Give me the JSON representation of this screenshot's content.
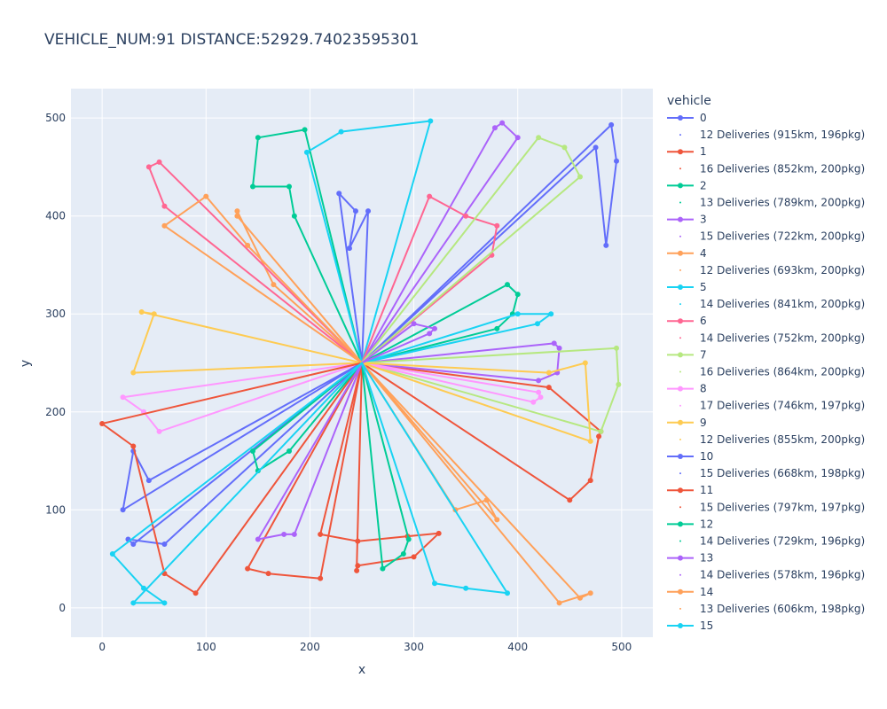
{
  "chart_data": {
    "type": "scatter",
    "mode": "lines+markers",
    "title": "VEHICLE_NUM:91 DISTANCE:52929.74023595301",
    "xlabel": "x",
    "ylabel": "y",
    "xlim": [
      -30,
      530
    ],
    "ylim": [
      -30,
      530
    ],
    "x_ticks": [
      0,
      100,
      200,
      300,
      400,
      500
    ],
    "y_ticks": [
      0,
      100,
      200,
      300,
      400,
      500
    ],
    "x_tick_labels": [
      "0",
      "100",
      "200",
      "300",
      "400",
      "500"
    ],
    "y_tick_labels": [
      "0",
      "100",
      "200",
      "300",
      "400",
      "500"
    ],
    "grid": true,
    "plot_background": "#e5ecf6",
    "depot": [
      250,
      250
    ],
    "legend": {
      "title": "vehicle",
      "placement": "right",
      "entries": [
        {
          "label": "0",
          "color": "#636efa",
          "kind": "line"
        },
        {
          "label": "12 Deliveries (915km, 196pkg)",
          "color": "#636efa",
          "kind": "dot"
        },
        {
          "label": "1",
          "color": "#ef553b",
          "kind": "line"
        },
        {
          "label": "16 Deliveries (852km, 200pkg)",
          "color": "#ef553b",
          "kind": "dot"
        },
        {
          "label": "2",
          "color": "#00cc96",
          "kind": "line"
        },
        {
          "label": "13 Deliveries (789km, 200pkg)",
          "color": "#00cc96",
          "kind": "dot"
        },
        {
          "label": "3",
          "color": "#ab63fa",
          "kind": "line"
        },
        {
          "label": "15 Deliveries (722km, 200pkg)",
          "color": "#ab63fa",
          "kind": "dot"
        },
        {
          "label": "4",
          "color": "#ffa15a",
          "kind": "line"
        },
        {
          "label": "12 Deliveries (693km, 200pkg)",
          "color": "#ffa15a",
          "kind": "dot"
        },
        {
          "label": "5",
          "color": "#19d3f3",
          "kind": "line"
        },
        {
          "label": "14 Deliveries (841km, 200pkg)",
          "color": "#19d3f3",
          "kind": "dot"
        },
        {
          "label": "6",
          "color": "#ff6692",
          "kind": "line"
        },
        {
          "label": "14 Deliveries (752km, 200pkg)",
          "color": "#ff6692",
          "kind": "dot"
        },
        {
          "label": "7",
          "color": "#b6e880",
          "kind": "line"
        },
        {
          "label": "16 Deliveries (864km, 200pkg)",
          "color": "#b6e880",
          "kind": "dot"
        },
        {
          "label": "8",
          "color": "#ff97ff",
          "kind": "line"
        },
        {
          "label": "17 Deliveries (746km, 197pkg)",
          "color": "#ff97ff",
          "kind": "dot"
        },
        {
          "label": "9",
          "color": "#fecb52",
          "kind": "line"
        },
        {
          "label": "12 Deliveries (855km, 200pkg)",
          "color": "#fecb52",
          "kind": "dot"
        },
        {
          "label": "10",
          "color": "#636efa",
          "kind": "line"
        },
        {
          "label": "15 Deliveries (668km, 198pkg)",
          "color": "#636efa",
          "kind": "dot"
        },
        {
          "label": "11",
          "color": "#ef553b",
          "kind": "line"
        },
        {
          "label": "15 Deliveries (797km, 197pkg)",
          "color": "#ef553b",
          "kind": "dot"
        },
        {
          "label": "12",
          "color": "#00cc96",
          "kind": "line"
        },
        {
          "label": "14 Deliveries (729km, 196pkg)",
          "color": "#00cc96",
          "kind": "dot"
        },
        {
          "label": "13",
          "color": "#ab63fa",
          "kind": "line"
        },
        {
          "label": "14 Deliveries (578km, 196pkg)",
          "color": "#ab63fa",
          "kind": "dot"
        },
        {
          "label": "14",
          "color": "#ffa15a",
          "kind": "line"
        },
        {
          "label": "13 Deliveries (606km, 198pkg)",
          "color": "#ffa15a",
          "kind": "dot"
        },
        {
          "label": "15",
          "color": "#19d3f3",
          "kind": "line"
        },
        {
          "label": "14 Deliveries (690km, 197pkg)",
          "color": "#19d3f3",
          "kind": "dot"
        }
      ]
    },
    "series": [
      {
        "name": "0",
        "color": "#636efa",
        "points": [
          [
            250,
            250
          ],
          [
            228,
            423
          ],
          [
            244,
            405
          ],
          [
            238,
            367
          ],
          [
            256,
            405
          ],
          [
            250,
            250
          ],
          [
            490,
            493
          ],
          [
            495,
            456
          ],
          [
            485,
            370
          ],
          [
            475,
            470
          ],
          [
            250,
            250
          ]
        ]
      },
      {
        "name": "1",
        "color": "#ef553b",
        "points": [
          [
            250,
            250
          ],
          [
            210,
            75
          ],
          [
            246,
            68
          ],
          [
            294,
            73
          ],
          [
            324,
            76
          ],
          [
            300,
            52
          ],
          [
            246,
            43
          ],
          [
            245,
            38
          ],
          [
            250,
            250
          ],
          [
            430,
            225
          ],
          [
            480,
            180
          ],
          [
            478,
            175
          ],
          [
            470,
            130
          ],
          [
            450,
            110
          ],
          [
            250,
            250
          ]
        ]
      },
      {
        "name": "2",
        "color": "#00cc96",
        "points": [
          [
            250,
            250
          ],
          [
            185,
            400
          ],
          [
            180,
            430
          ],
          [
            145,
            430
          ],
          [
            150,
            480
          ],
          [
            195,
            488
          ],
          [
            250,
            250
          ],
          [
            390,
            330
          ],
          [
            400,
            320
          ],
          [
            395,
            300
          ],
          [
            380,
            285
          ],
          [
            250,
            250
          ]
        ]
      },
      {
        "name": "3",
        "color": "#ab63fa",
        "points": [
          [
            250,
            250
          ],
          [
            400,
            480
          ],
          [
            385,
            495
          ],
          [
            378,
            490
          ],
          [
            250,
            250
          ],
          [
            435,
            270
          ],
          [
            440,
            265
          ],
          [
            438,
            240
          ],
          [
            420,
            232
          ],
          [
            250,
            250
          ]
        ]
      },
      {
        "name": "4",
        "color": "#ffa15a",
        "points": [
          [
            250,
            250
          ],
          [
            165,
            330
          ],
          [
            130,
            405
          ],
          [
            130,
            400
          ],
          [
            250,
            250
          ],
          [
            460,
            10
          ],
          [
            470,
            15
          ],
          [
            440,
            5
          ],
          [
            250,
            250
          ]
        ]
      },
      {
        "name": "5",
        "color": "#19d3f3",
        "points": [
          [
            250,
            250
          ],
          [
            197,
            465
          ],
          [
            230,
            486
          ],
          [
            316,
            497
          ],
          [
            250,
            250
          ],
          [
            400,
            300
          ],
          [
            432,
            300
          ],
          [
            419,
            290
          ],
          [
            250,
            250
          ]
        ]
      },
      {
        "name": "6",
        "color": "#ff6692",
        "points": [
          [
            250,
            250
          ],
          [
            315,
            420
          ],
          [
            350,
            400
          ],
          [
            380,
            390
          ],
          [
            375,
            360
          ],
          [
            250,
            250
          ],
          [
            55,
            455
          ],
          [
            45,
            450
          ],
          [
            60,
            410
          ],
          [
            250,
            250
          ]
        ]
      },
      {
        "name": "7",
        "color": "#b6e880",
        "points": [
          [
            250,
            250
          ],
          [
            420,
            480
          ],
          [
            445,
            470
          ],
          [
            460,
            440
          ],
          [
            250,
            250
          ],
          [
            495,
            265
          ],
          [
            497,
            228
          ],
          [
            480,
            180
          ],
          [
            250,
            250
          ]
        ]
      },
      {
        "name": "8",
        "color": "#ff97ff",
        "points": [
          [
            250,
            250
          ],
          [
            20,
            215
          ],
          [
            40,
            200
          ],
          [
            55,
            180
          ],
          [
            250,
            250
          ],
          [
            420,
            220
          ],
          [
            422,
            215
          ],
          [
            415,
            210
          ],
          [
            250,
            250
          ]
        ]
      },
      {
        "name": "9",
        "color": "#fecb52",
        "points": [
          [
            250,
            250
          ],
          [
            38,
            302
          ],
          [
            50,
            300
          ],
          [
            30,
            240
          ],
          [
            250,
            250
          ],
          [
            430,
            240
          ],
          [
            465,
            250
          ],
          [
            470,
            170
          ],
          [
            250,
            250
          ]
        ]
      },
      {
        "name": "10",
        "color": "#636efa",
        "points": [
          [
            250,
            250
          ],
          [
            20,
            100
          ],
          [
            30,
            160
          ],
          [
            45,
            130
          ],
          [
            250,
            250
          ],
          [
            60,
            65
          ],
          [
            25,
            70
          ],
          [
            30,
            65
          ],
          [
            250,
            250
          ]
        ]
      },
      {
        "name": "11",
        "color": "#ef553b",
        "points": [
          [
            250,
            250
          ],
          [
            0,
            188
          ],
          [
            30,
            165
          ],
          [
            60,
            35
          ],
          [
            90,
            15
          ],
          [
            250,
            250
          ],
          [
            140,
            40
          ],
          [
            160,
            35
          ],
          [
            210,
            30
          ],
          [
            250,
            250
          ]
        ]
      },
      {
        "name": "12",
        "color": "#00cc96",
        "points": [
          [
            250,
            250
          ],
          [
            180,
            160
          ],
          [
            150,
            140
          ],
          [
            145,
            160
          ],
          [
            250,
            250
          ],
          [
            270,
            40
          ],
          [
            290,
            55
          ],
          [
            295,
            70
          ],
          [
            250,
            250
          ]
        ]
      },
      {
        "name": "13",
        "color": "#ab63fa",
        "points": [
          [
            250,
            250
          ],
          [
            150,
            70
          ],
          [
            175,
            75
          ],
          [
            185,
            75
          ],
          [
            250,
            250
          ],
          [
            315,
            280
          ],
          [
            320,
            285
          ],
          [
            300,
            290
          ],
          [
            250,
            250
          ]
        ]
      },
      {
        "name": "14",
        "color": "#ffa15a",
        "points": [
          [
            250,
            250
          ],
          [
            60,
            390
          ],
          [
            100,
            420
          ],
          [
            140,
            370
          ],
          [
            250,
            250
          ],
          [
            340,
            100
          ],
          [
            370,
            110
          ],
          [
            380,
            90
          ],
          [
            250,
            250
          ]
        ]
      },
      {
        "name": "15",
        "color": "#19d3f3",
        "points": [
          [
            250,
            250
          ],
          [
            30,
            5
          ],
          [
            60,
            5
          ],
          [
            40,
            20
          ],
          [
            10,
            55
          ],
          [
            250,
            250
          ],
          [
            320,
            25
          ],
          [
            350,
            20
          ],
          [
            390,
            15
          ],
          [
            250,
            250
          ]
        ]
      }
    ]
  }
}
